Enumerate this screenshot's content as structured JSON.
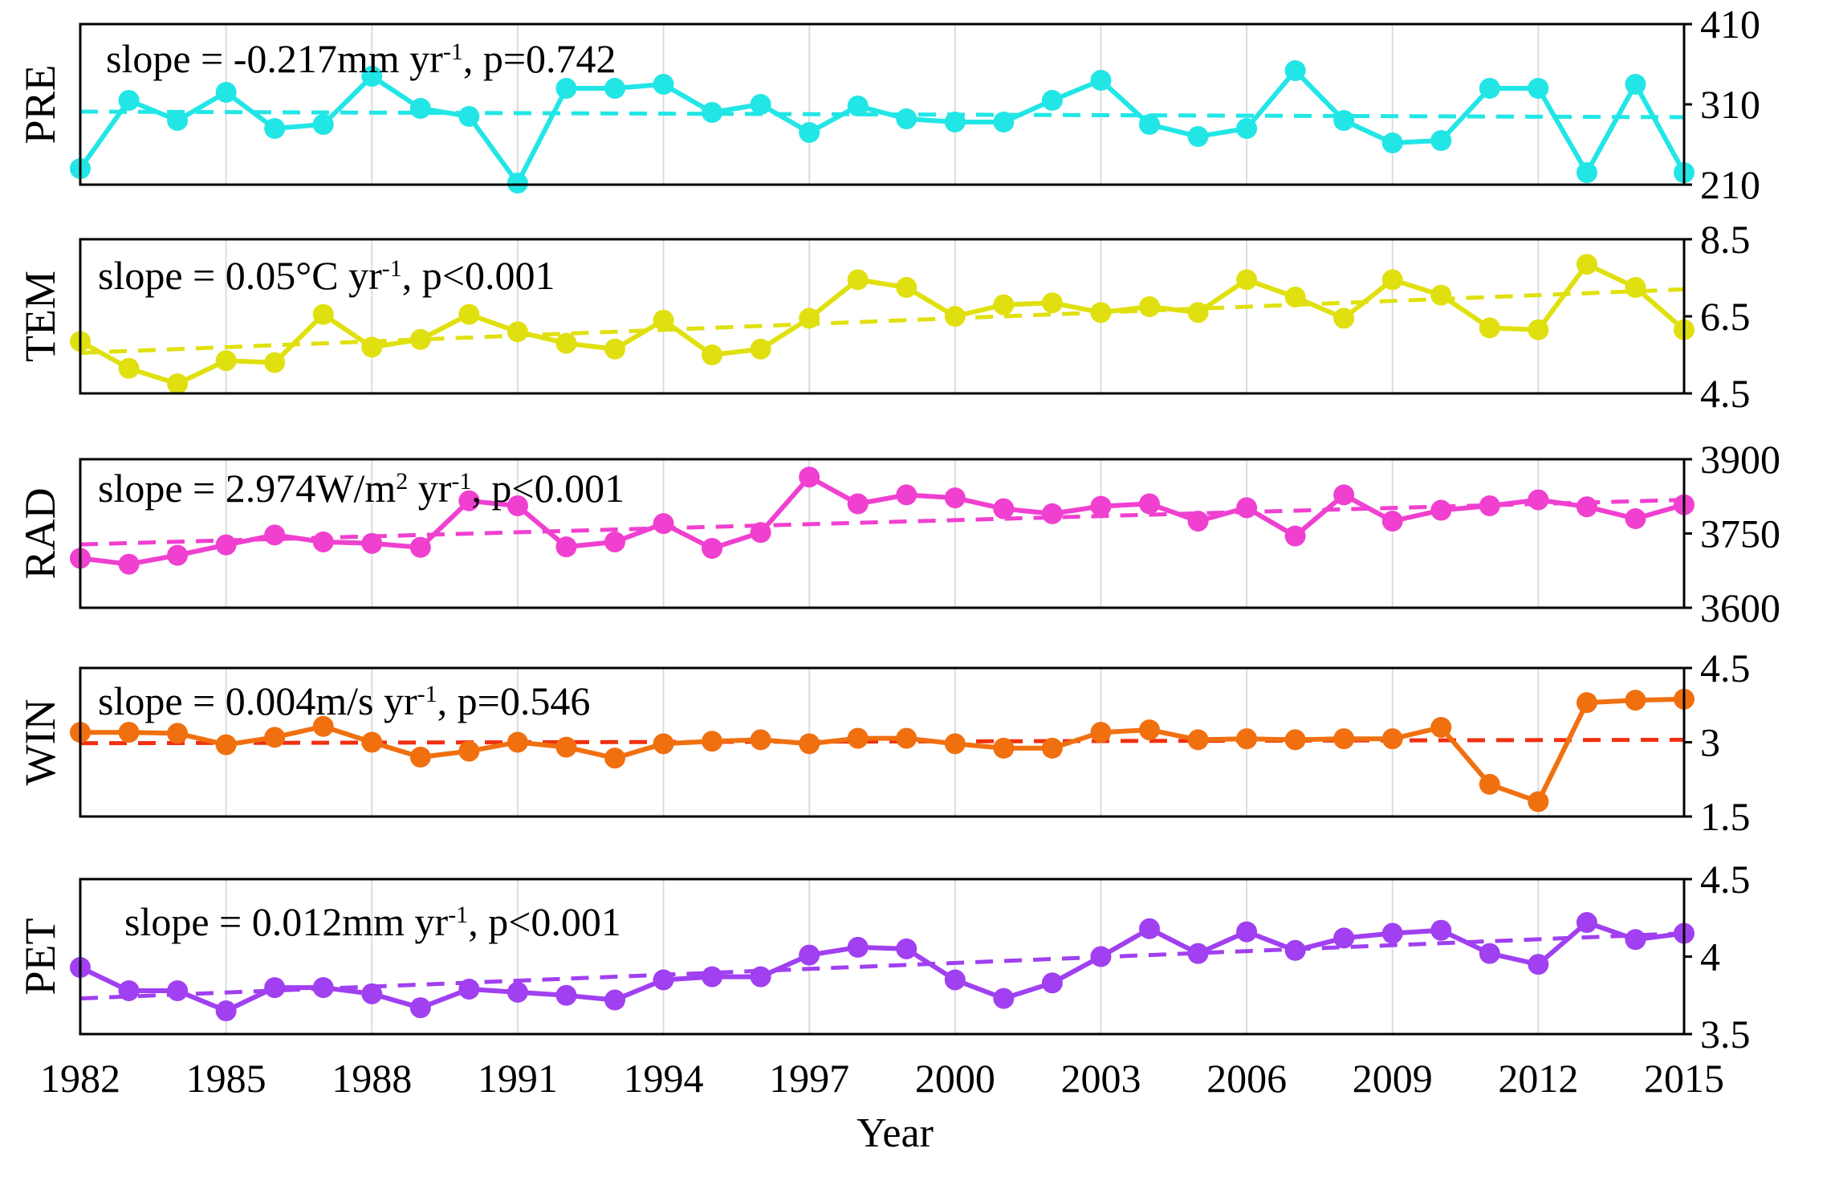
{
  "chart_data": {
    "type": "line",
    "x_title": "Year",
    "x_tick_labels": [
      "1982",
      "1985",
      "1988",
      "1991",
      "1994",
      "1997",
      "2000",
      "2003",
      "2006",
      "2009",
      "2012",
      "2015"
    ],
    "x": [
      1982,
      1983,
      1984,
      1985,
      1986,
      1987,
      1988,
      1989,
      1990,
      1991,
      1992,
      1993,
      1994,
      1995,
      1996,
      1997,
      1998,
      1999,
      2000,
      2001,
      2002,
      2003,
      2004,
      2005,
      2006,
      2007,
      2008,
      2009,
      2010,
      2011,
      2012,
      2013,
      2014,
      2015
    ],
    "xlim": [
      1982,
      2015
    ],
    "panels": [
      {
        "name": "PRE",
        "ylabel": "PRE",
        "color": "#22e6e6",
        "ylim": [
          210,
          410
        ],
        "y_ticks": [
          "410",
          "310",
          "210"
        ],
        "y_tick_values": [
          410,
          310,
          210
        ],
        "annotation": {
          "before": "slope = -0.217mm yr",
          "sup": "-1",
          "after": ", p=0.742"
        },
        "values": [
          230,
          315,
          290,
          325,
          280,
          285,
          345,
          305,
          295,
          212,
          330,
          330,
          335,
          300,
          310,
          275,
          308,
          292,
          288,
          288,
          315,
          340,
          285,
          270,
          280,
          352,
          290,
          262,
          265,
          330,
          330,
          225,
          335,
          225
        ],
        "trend": [
          301,
          294
        ]
      },
      {
        "name": "TEM",
        "ylabel": "TEM",
        "color": "#e0e010",
        "ylim": [
          4.5,
          8.5
        ],
        "y_ticks": [
          "8.5",
          "6.5",
          "4.5"
        ],
        "y_tick_values": [
          8.5,
          6.5,
          4.5
        ],
        "annotation": {
          "before": "slope = 0.05°C yr",
          "sup": "-1",
          "after": ", p<0.001"
        },
        "values": [
          5.85,
          5.15,
          4.75,
          5.35,
          5.3,
          6.55,
          5.7,
          5.9,
          6.55,
          6.1,
          5.8,
          5.65,
          6.4,
          5.5,
          5.65,
          6.45,
          7.45,
          7.25,
          6.5,
          6.8,
          6.85,
          6.6,
          6.75,
          6.6,
          7.45,
          7.0,
          6.45,
          7.45,
          7.05,
          6.2,
          6.15,
          7.85,
          7.25,
          6.15
        ],
        "trend": [
          5.55,
          7.2
        ]
      },
      {
        "name": "RAD",
        "ylabel": "RAD",
        "color": "#f040d0",
        "ylim": [
          3600,
          3900
        ],
        "y_ticks": [
          "3900",
          "3750",
          "3600"
        ],
        "y_tick_values": [
          3900,
          3750,
          3600
        ],
        "annotation": {
          "before": "slope = 2.974W/m",
          "sup": "2",
          "mid": " yr",
          "sup2": "-1",
          "after": ", p<0.001"
        },
        "values": [
          3700,
          3688,
          3706,
          3727,
          3747,
          3733,
          3730,
          3722,
          3816,
          3806,
          3723,
          3733,
          3770,
          3720,
          3752,
          3864,
          3810,
          3828,
          3822,
          3800,
          3790,
          3805,
          3810,
          3775,
          3802,
          3745,
          3828,
          3775,
          3797,
          3806,
          3818,
          3804,
          3780,
          3808
        ],
        "trend": [
          3728,
          3818
        ]
      },
      {
        "name": "WIN",
        "ylabel": "WIN",
        "color": "#f07010",
        "trend_color": "#f03010",
        "ylim": [
          1.5,
          4.5
        ],
        "y_ticks": [
          "4.5",
          "3",
          "1.5"
        ],
        "y_tick_values": [
          4.5,
          3,
          1.5
        ],
        "annotation": {
          "before": "slope = 0.004m/s yr",
          "sup": "-1",
          "after": ", p=0.546"
        },
        "values": [
          3.2,
          3.2,
          3.18,
          2.95,
          3.1,
          3.32,
          3.0,
          2.7,
          2.82,
          3.0,
          2.9,
          2.68,
          2.97,
          3.02,
          3.05,
          2.97,
          3.08,
          3.08,
          2.97,
          2.88,
          2.88,
          3.2,
          3.25,
          3.05,
          3.07,
          3.05,
          3.07,
          3.07,
          3.3,
          2.15,
          1.8,
          3.8,
          3.85,
          3.87
        ],
        "trend": [
          2.98,
          3.05
        ]
      },
      {
        "name": "PET",
        "ylabel": "PET",
        "color": "#a040f0",
        "ylim": [
          3.5,
          4.5
        ],
        "y_ticks": [
          "4.5",
          "4",
          "3.5"
        ],
        "y_tick_values": [
          4.5,
          4,
          3.5
        ],
        "annotation": {
          "before": "slope = 0.012mm yr",
          "sup": "-1",
          "after": ", p<0.001"
        },
        "values": [
          3.93,
          3.78,
          3.78,
          3.65,
          3.8,
          3.8,
          3.76,
          3.67,
          3.79,
          3.77,
          3.75,
          3.72,
          3.85,
          3.87,
          3.87,
          4.01,
          4.06,
          4.05,
          3.85,
          3.73,
          3.83,
          4.0,
          4.18,
          4.02,
          4.16,
          4.04,
          4.12,
          4.15,
          4.17,
          4.02,
          3.95,
          4.22,
          4.11,
          4.15
        ],
        "trend": [
          3.73,
          4.15
        ]
      }
    ]
  }
}
